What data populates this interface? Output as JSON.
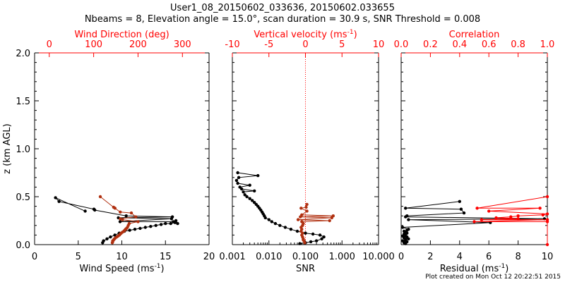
{
  "header": {
    "title_line1": "User1_08_20150602_033636, 20150602.033655",
    "title_line2": "Nbeams = 8, Elevation angle = 15.0°, scan duration = 30.9 s, SNR Threshold = 0.008"
  },
  "footer": {
    "credit": "Plot created on Mon Oct 12 20:22:51 2015"
  },
  "colors": {
    "primary": "#000000",
    "secondary": "#ff0000",
    "direction_points": "#b03010",
    "velocity_points": "#b03010"
  },
  "chart_data": [
    {
      "type": "scatter",
      "panel": "wind",
      "ylabel": "z (km AGL)",
      "ylim": [
        0,
        2
      ],
      "yticks": [
        0.0,
        0.5,
        1.0,
        1.5,
        2.0
      ],
      "ytick_labels": [
        "0.0",
        "0.5",
        "1.0",
        "1.5",
        "2.0"
      ],
      "bottom_axis": {
        "label": "Wind Speed (ms⁻¹)",
        "range": [
          0,
          20
        ],
        "ticks": [
          0,
          5,
          10,
          15,
          20
        ],
        "tick_labels": [
          "0",
          "5",
          "10",
          "15",
          "20"
        ]
      },
      "top_axis": {
        "label": "Wind Direction (deg)",
        "range": [
          -33,
          360
        ],
        "ticks": [
          0,
          100,
          200,
          300
        ],
        "tick_labels": [
          "0",
          "100",
          "200",
          "300"
        ]
      },
      "series": [
        {
          "axis": "bottom",
          "connected": true,
          "color": "#000000",
          "x": [
            7.8,
            7.9,
            8.3,
            8.7,
            9.2,
            9.7,
            10.3,
            10.9,
            11.5,
            12.1,
            12.7,
            13.3,
            13.9,
            14.5,
            15.0,
            15.6,
            16.1,
            16.4,
            16.2,
            15.9,
            9.8,
            15.7,
            9.6,
            15.8,
            10.5,
            6.9,
            6.8,
            2.8,
            2.4,
            5.8
          ],
          "y": [
            0.02,
            0.04,
            0.06,
            0.08,
            0.1,
            0.12,
            0.14,
            0.15,
            0.16,
            0.17,
            0.18,
            0.19,
            0.2,
            0.21,
            0.22,
            0.22,
            0.23,
            0.22,
            0.25,
            0.24,
            0.24,
            0.27,
            0.28,
            0.29,
            0.3,
            0.36,
            0.37,
            0.45,
            0.49,
            0.35
          ]
        },
        {
          "axis": "top",
          "connected": true,
          "color": "#b03010",
          "x": [
            142,
            143,
            143,
            145,
            147,
            149,
            152,
            155,
            158,
            160,
            162,
            165,
            168,
            170,
            172,
            174,
            176,
            178,
            180,
            200,
            165,
            160,
            195,
            185,
            160,
            148,
            145,
            115
          ],
          "y": [
            0.02,
            0.03,
            0.04,
            0.05,
            0.06,
            0.07,
            0.08,
            0.09,
            0.1,
            0.11,
            0.12,
            0.13,
            0.14,
            0.15,
            0.16,
            0.17,
            0.18,
            0.2,
            0.22,
            0.24,
            0.26,
            0.27,
            0.29,
            0.33,
            0.34,
            0.38,
            0.39,
            0.5
          ]
        }
      ]
    },
    {
      "type": "scatter",
      "panel": "snr",
      "ylim": [
        0,
        2
      ],
      "bottom_axis": {
        "label": "SNR",
        "scale": "log",
        "range": [
          0.001,
          10
        ],
        "ticks": [
          0.001,
          0.01,
          0.1,
          1,
          10
        ],
        "tick_labels": [
          "0.001",
          "0.010",
          "0.100",
          "1.000",
          "10.000"
        ]
      },
      "top_axis": {
        "label": "Vertical velocity (ms⁻¹)",
        "range": [
          -10,
          10
        ],
        "ticks": [
          -10,
          -5,
          0,
          5,
          10
        ],
        "tick_labels": [
          "-10",
          "-5",
          "0",
          "5",
          "10"
        ]
      },
      "reference_line": {
        "axis": "top",
        "value": 0
      },
      "series": [
        {
          "axis": "bottom",
          "connected": true,
          "color": "#000000",
          "x": [
            0.07,
            0.1,
            0.14,
            0.2,
            0.28,
            0.32,
            0.25,
            0.16,
            0.1,
            0.06,
            0.04,
            0.028,
            0.02,
            0.015,
            0.012,
            0.01,
            0.008,
            0.0075,
            0.007,
            0.0065,
            0.006,
            0.0055,
            0.005,
            0.0045,
            0.004,
            0.0035,
            0.003,
            0.0025,
            0.0022,
            0.002,
            0.004,
            0.0018,
            0.0016,
            0.003,
            0.0014,
            0.0013,
            0.0015,
            0.005,
            0.0014
          ],
          "y": [
            0.01,
            0.02,
            0.03,
            0.04,
            0.06,
            0.08,
            0.1,
            0.11,
            0.12,
            0.14,
            0.16,
            0.18,
            0.2,
            0.22,
            0.24,
            0.26,
            0.28,
            0.3,
            0.32,
            0.34,
            0.36,
            0.38,
            0.4,
            0.42,
            0.44,
            0.46,
            0.48,
            0.5,
            0.52,
            0.55,
            0.56,
            0.58,
            0.6,
            0.62,
            0.64,
            0.67,
            0.7,
            0.72,
            0.75
          ]
        },
        {
          "axis": "top",
          "connected": true,
          "color": "#b03010",
          "x": [
            -0.1,
            -0.2,
            -0.3,
            -0.3,
            -0.4,
            -0.5,
            -0.4,
            -0.6,
            -0.5,
            -0.6,
            -0.4,
            -0.3,
            -0.5,
            3.3,
            -1.0,
            3.6,
            -0.7,
            3.8,
            -0.5,
            0.2,
            -0.6,
            0.1,
            0.2
          ],
          "y": [
            0.02,
            0.04,
            0.05,
            0.06,
            0.08,
            0.1,
            0.12,
            0.14,
            0.16,
            0.18,
            0.2,
            0.22,
            0.24,
            0.25,
            0.26,
            0.28,
            0.29,
            0.3,
            0.31,
            0.35,
            0.38,
            0.39,
            0.42
          ]
        }
      ]
    },
    {
      "type": "scatter",
      "panel": "residual",
      "ylim": [
        0,
        2
      ],
      "bottom_axis": {
        "label": "Residual (ms⁻¹)",
        "range": [
          0,
          10
        ],
        "ticks": [
          0,
          2,
          4,
          6,
          8,
          10
        ],
        "tick_labels": [
          "0",
          "2",
          "4",
          "6",
          "8",
          "10"
        ]
      },
      "top_axis": {
        "label": "Correlation",
        "range": [
          0,
          1
        ],
        "ticks": [
          0,
          0.2,
          0.4,
          0.6,
          0.8,
          1.0
        ],
        "tick_labels": [
          "0.0",
          "0.2",
          "0.4",
          "0.6",
          "0.8",
          "1.0"
        ]
      },
      "series": [
        {
          "axis": "bottom",
          "connected": true,
          "color": "#000000",
          "x": [
            0.3,
            0.2,
            0.4,
            0.1,
            0.3,
            0.5,
            0.2,
            0.4,
            0.1,
            0.3,
            0.2,
            0.4,
            0.3,
            0.2,
            0.4,
            0.5,
            0.1,
            6.1,
            0.5,
            9.8,
            0.3,
            0.4,
            4.3,
            4.1,
            0.3,
            4.0
          ],
          "y": [
            0.01,
            0.02,
            0.03,
            0.04,
            0.05,
            0.06,
            0.07,
            0.08,
            0.09,
            0.1,
            0.11,
            0.12,
            0.13,
            0.14,
            0.15,
            0.16,
            0.18,
            0.23,
            0.26,
            0.27,
            0.29,
            0.3,
            0.33,
            0.37,
            0.38,
            0.45
          ]
        },
        {
          "axis": "top",
          "connected": true,
          "color": "#ff0000",
          "x": [
            1.0,
            1.0,
            0.5,
            1.0,
            0.55,
            0.8,
            0.65,
            0.75,
            0.8,
            0.97,
            1.0,
            0.6,
            0.95,
            0.52,
            1.0
          ],
          "y": [
            0.0,
            0.24,
            0.24,
            0.26,
            0.26,
            0.27,
            0.28,
            0.29,
            0.3,
            0.31,
            0.32,
            0.35,
            0.38,
            0.38,
            0.5
          ]
        }
      ]
    }
  ]
}
